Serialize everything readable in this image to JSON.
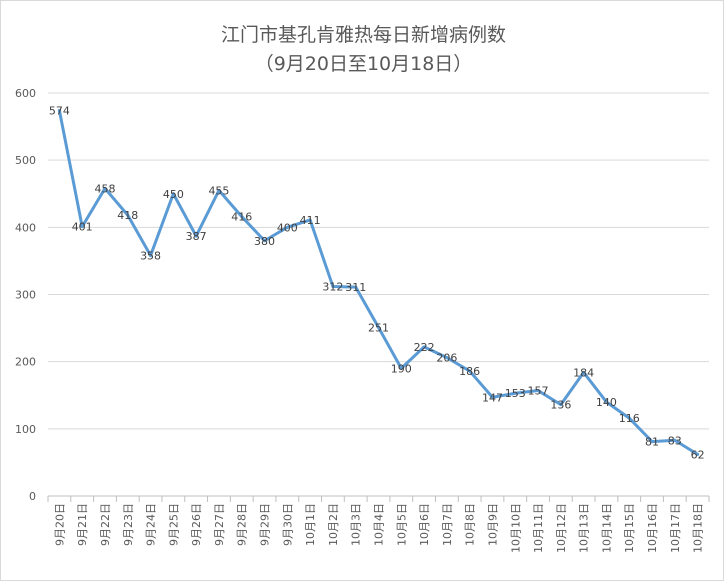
{
  "chart_data": {
    "type": "line",
    "title": "江门市基孔肯雅热每日新增病例数",
    "subtitle": "（9月20日至10月18日）",
    "categories": [
      "9月20日",
      "9月21日",
      "9月22日",
      "9月23日",
      "9月24日",
      "9月25日",
      "9月26日",
      "9月27日",
      "9月28日",
      "9月29日",
      "9月30日",
      "10月1日",
      "10月2日",
      "10月3日",
      "10月4日",
      "10月5日",
      "10月6日",
      "10月7日",
      "10月8日",
      "10月9日",
      "10月10日",
      "10月11日",
      "10月12日",
      "10月13日",
      "10月14日",
      "10月15日",
      "10月16日",
      "10月17日",
      "10月18日"
    ],
    "series": [
      {
        "values": [
          574,
          401,
          458,
          418,
          358,
          450,
          387,
          455,
          416,
          380,
          400,
          411,
          312,
          311,
          251,
          190,
          222,
          206,
          186,
          147,
          153,
          157,
          136,
          184,
          140,
          116,
          81,
          83,
          62
        ]
      }
    ],
    "ylim": [
      0,
      600
    ],
    "yticks": [
      0,
      100,
      200,
      300,
      400,
      500,
      600
    ],
    "grid": true,
    "line_color": "#5b9bd5",
    "grid_color": "#d9d9d9"
  }
}
